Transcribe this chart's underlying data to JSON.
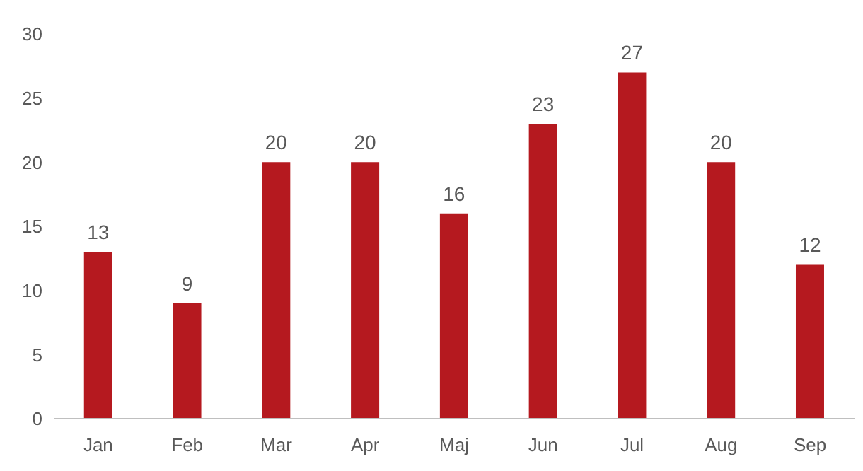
{
  "chart_data": {
    "type": "bar",
    "categories": [
      "Jan",
      "Feb",
      "Mar",
      "Apr",
      "Maj",
      "Jun",
      "Jul",
      "Aug",
      "Sep"
    ],
    "values": [
      13,
      9,
      20,
      20,
      16,
      23,
      27,
      20,
      12
    ],
    "color": "#b5191f",
    "ylim": [
      0,
      30
    ],
    "yticks": [
      0,
      5,
      10,
      15,
      20,
      25,
      30
    ],
    "grid": false,
    "data_labels": true
  }
}
